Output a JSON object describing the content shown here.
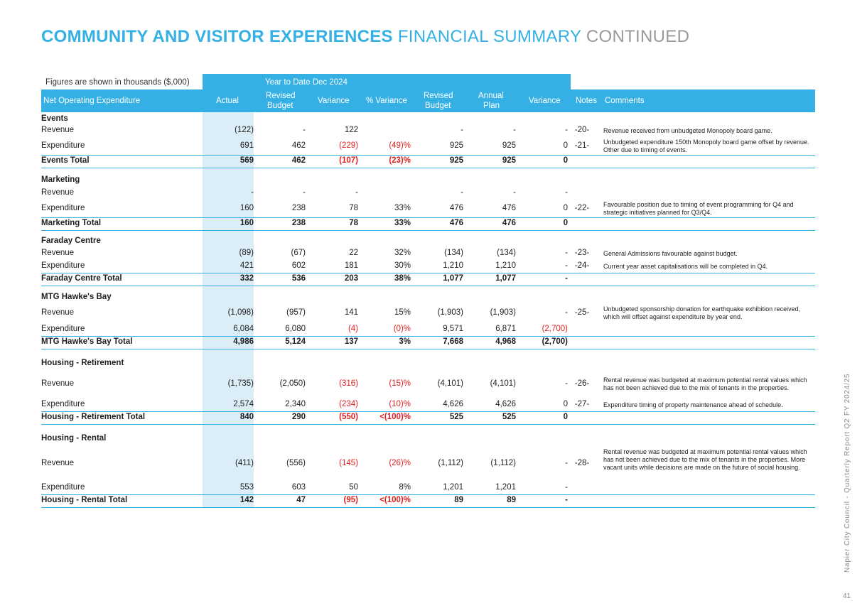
{
  "title": {
    "part1": "COMMUNITY AND VISITOR EXPERIENCES",
    "part2": "FINANCIAL SUMMARY",
    "part3": "CONTINUED"
  },
  "figures_note": "Figures are shown in thousands ($,000)",
  "ytd_label": "Year to Date  Dec 2024",
  "headers": {
    "label": "Net Operating Expenditure",
    "actual": "Actual",
    "revised_budget_ytd": [
      "Revised",
      "Budget"
    ],
    "variance": "Variance",
    "pct_variance": "% Variance",
    "revised_budget": [
      "Revised",
      "Budget"
    ],
    "annual_plan": [
      "Annual",
      "Plan"
    ],
    "variance2": "Variance",
    "notes": "Notes",
    "comments": "Comments"
  },
  "rows": [
    {
      "type": "section",
      "label": "Events"
    },
    {
      "type": "row",
      "label": "Revenue",
      "actual": "(122)",
      "rb": "-",
      "var": "122",
      "pct": "",
      "rb2": "-",
      "ap": "-",
      "var2": "-",
      "note": "-20-",
      "comment": "Revenue received from unbudgeted Monopoly board game.",
      "red": []
    },
    {
      "type": "row",
      "label": "Expenditure",
      "actual": "691",
      "rb": "462",
      "var": "(229)",
      "pct": "(49)%",
      "rb2": "925",
      "ap": "925",
      "var2": "0",
      "note": "-21-",
      "comment": "Unbudgeted expenditure 150th Monopoly board game offset by revenue. Other due to timing of events.",
      "red": [
        "var",
        "pct"
      ]
    },
    {
      "type": "total",
      "label": "Events Total",
      "actual": "569",
      "rb": "462",
      "var": "(107)",
      "pct": "(23)%",
      "rb2": "925",
      "ap": "925",
      "var2": "0",
      "red": [
        "var",
        "pct"
      ]
    },
    {
      "type": "section",
      "label": "Marketing"
    },
    {
      "type": "row",
      "label": "Revenue",
      "actual": "-",
      "rb": "-",
      "var": "-",
      "pct": "",
      "rb2": "-",
      "ap": "-",
      "var2": "-",
      "note": "",
      "comment": "",
      "red": []
    },
    {
      "type": "row",
      "label": "Expenditure",
      "actual": "160",
      "rb": "238",
      "var": "78",
      "pct": "33%",
      "rb2": "476",
      "ap": "476",
      "var2": "0",
      "note": "-22-",
      "comment": "Favourable position due to timing of event programming for Q4 and strategic initiatives planned for Q3/Q4.",
      "red": []
    },
    {
      "type": "total",
      "label": "Marketing Total",
      "actual": "160",
      "rb": "238",
      "var": "78",
      "pct": "33%",
      "rb2": "476",
      "ap": "476",
      "var2": "0",
      "red": []
    },
    {
      "type": "section",
      "label": "Faraday Centre"
    },
    {
      "type": "row",
      "label": "Revenue",
      "actual": "(89)",
      "rb": "(67)",
      "var": "22",
      "pct": "32%",
      "rb2": "(134)",
      "ap": "(134)",
      "var2": "-",
      "note": "-23-",
      "comment": "General Admissions favourable against budget.",
      "red": []
    },
    {
      "type": "row",
      "label": "Expenditure",
      "actual": "421",
      "rb": "602",
      "var": "181",
      "pct": "30%",
      "rb2": "1,210",
      "ap": "1,210",
      "var2": "-",
      "note": "-24-",
      "comment": "Current year asset capitalisations will be completed in Q4.",
      "red": []
    },
    {
      "type": "total",
      "label": "Faraday Centre Total",
      "actual": "332",
      "rb": "536",
      "var": "203",
      "pct": "38%",
      "rb2": "1,077",
      "ap": "1,077",
      "var2": "-",
      "red": []
    },
    {
      "type": "section",
      "label": "MTG Hawke's Bay"
    },
    {
      "type": "row",
      "label": "Revenue",
      "actual": "(1,098)",
      "rb": "(957)",
      "var": "141",
      "pct": "15%",
      "rb2": "(1,903)",
      "ap": "(1,903)",
      "var2": "-",
      "note": "-25-",
      "comment": "Unbudgeted sponsorship donation for earthquake exhibition received, which will offset against expenditure by year end.",
      "red": []
    },
    {
      "type": "row",
      "label": "Expenditure",
      "actual": "6,084",
      "rb": "6,080",
      "var": "(4)",
      "pct": "(0)%",
      "rb2": "9,571",
      "ap": "6,871",
      "var2": "(2,700)",
      "note": "",
      "comment": "",
      "red": [
        "var",
        "pct",
        "var2"
      ]
    },
    {
      "type": "total",
      "label": "MTG Hawke's Bay Total",
      "actual": "4,986",
      "rb": "5,124",
      "var": "137",
      "pct": "3%",
      "rb2": "7,668",
      "ap": "4,968",
      "var2": "(2,700)",
      "red": []
    },
    {
      "type": "section",
      "label": "Housing - Retirement"
    },
    {
      "type": "row",
      "label": "Revenue",
      "actual": "(1,735)",
      "rb": "(2,050)",
      "var": "(316)",
      "pct": "(15)%",
      "rb2": "(4,101)",
      "ap": "(4,101)",
      "var2": "-",
      "note": "-26-",
      "comment": "Rental revenue was budgeted at maximum potential rental values which has not been achieved due to the mix of tenants in the properties.",
      "red": [
        "var",
        "pct"
      ]
    },
    {
      "type": "row",
      "label": "Expenditure",
      "actual": "2,574",
      "rb": "2,340",
      "var": "(234)",
      "pct": "(10)%",
      "rb2": "4,626",
      "ap": "4,626",
      "var2": "0",
      "note": "-27-",
      "comment": "Expenditure timing of property maintenance ahead of schedule.",
      "red": [
        "var",
        "pct"
      ]
    },
    {
      "type": "total",
      "label": "Housing - Retirement Total",
      "actual": "840",
      "rb": "290",
      "var": "(550)",
      "pct": "<(100)%",
      "rb2": "525",
      "ap": "525",
      "var2": "0",
      "red": [
        "var",
        "pct"
      ]
    },
    {
      "type": "section",
      "label": "Housing - Rental"
    },
    {
      "type": "row",
      "label": "Revenue",
      "actual": "(411)",
      "rb": "(556)",
      "var": "(145)",
      "pct": "(26)%",
      "rb2": "(1,112)",
      "ap": "(1,112)",
      "var2": "-",
      "note": "-28-",
      "comment": "Rental revenue was budgeted at maximum potential rental values which has not been achieved due to the mix of tenants in the properties. More vacant units while decisions are made on the future of social housing.",
      "red": [
        "var",
        "pct"
      ]
    },
    {
      "type": "row",
      "label": "Expenditure",
      "actual": "553",
      "rb": "603",
      "var": "50",
      "pct": "8%",
      "rb2": "1,201",
      "ap": "1,201",
      "var2": "-",
      "note": "",
      "comment": "",
      "red": []
    },
    {
      "type": "total",
      "label": "Housing - Rental Total",
      "actual": "142",
      "rb": "47",
      "var": "(95)",
      "pct": "<(100)%",
      "rb2": "89",
      "ap": "89",
      "var2": "-",
      "red": [
        "var",
        "pct"
      ]
    }
  ],
  "side_text": "Napier City Council - Quarterly Report Q2 FY 2024/25",
  "page_number": "41"
}
